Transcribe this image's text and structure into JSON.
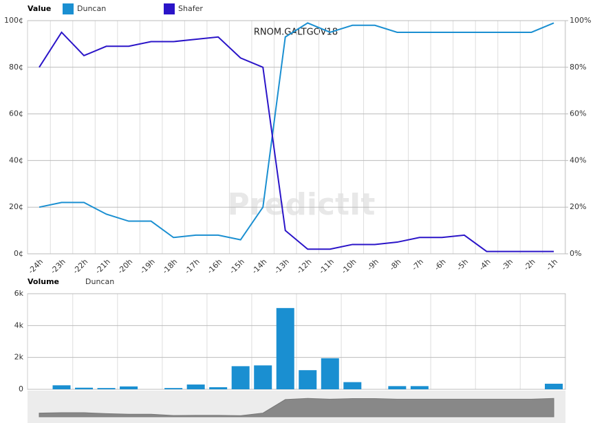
{
  "chart_data": [
    {
      "type": "line",
      "header": "Value",
      "annotation": "RNOM.GALTGOV18",
      "watermark": "PredictIt",
      "categories": [
        "-24h",
        "-23h",
        "-22h",
        "-21h",
        "-20h",
        "-19h",
        "-18h",
        "-17h",
        "-16h",
        "-15h",
        "-14h",
        "-13h",
        "-12h",
        "-11h",
        "-10h",
        "-9h",
        "-8h",
        "-7h",
        "-6h",
        "-5h",
        "-4h",
        "-3h",
        "-2h",
        "-1h"
      ],
      "series": [
        {
          "name": "Duncan",
          "color": "#1a8fd1",
          "values": [
            20,
            22,
            22,
            17,
            14,
            14,
            7,
            8,
            8,
            6,
            20,
            93,
            99,
            95,
            98,
            98,
            95,
            95,
            95,
            95,
            95,
            95,
            95,
            99
          ]
        },
        {
          "name": "Shafer",
          "color": "#2a14c8",
          "values": [
            80,
            95,
            85,
            89,
            89,
            91,
            91,
            92,
            93,
            84,
            80,
            10,
            2,
            2,
            4,
            4,
            5,
            7,
            7,
            8,
            1,
            1,
            1,
            1
          ]
        }
      ],
      "ylim": [
        0,
        100
      ],
      "yticks": [
        {
          "value": 0,
          "label": "0¢"
        },
        {
          "value": 20,
          "label": "20¢"
        },
        {
          "value": 40,
          "label": "40¢"
        },
        {
          "value": 60,
          "label": "60¢"
        },
        {
          "value": 80,
          "label": "80¢"
        },
        {
          "value": 100,
          "label": "100¢"
        }
      ],
      "y2lim": [
        0,
        100
      ],
      "y2ticks": [
        {
          "value": 0,
          "label": "0%"
        },
        {
          "value": 20,
          "label": "20%"
        },
        {
          "value": 40,
          "label": "40%"
        },
        {
          "value": 60,
          "label": "60%"
        },
        {
          "value": 80,
          "label": "80%"
        },
        {
          "value": 100,
          "label": "100%"
        }
      ],
      "grid": true
    },
    {
      "type": "bar",
      "header": "Volume",
      "series": [
        {
          "name": "Duncan",
          "color": "#1a8fd1",
          "values": [
            0,
            250,
            100,
            80,
            180,
            0,
            80,
            300,
            130,
            1450,
            1500,
            5100,
            1200,
            1950,
            450,
            0,
            200,
            200,
            0,
            0,
            0,
            0,
            0,
            350
          ]
        }
      ],
      "ylim": [
        0,
        6000
      ],
      "yticks": [
        0,
        {
          "value": 2000,
          "label": "2k"
        },
        {
          "value": 4000,
          "label": "4k"
        },
        {
          "value": 6000,
          "label": "6k"
        }
      ],
      "grid": true
    }
  ]
}
